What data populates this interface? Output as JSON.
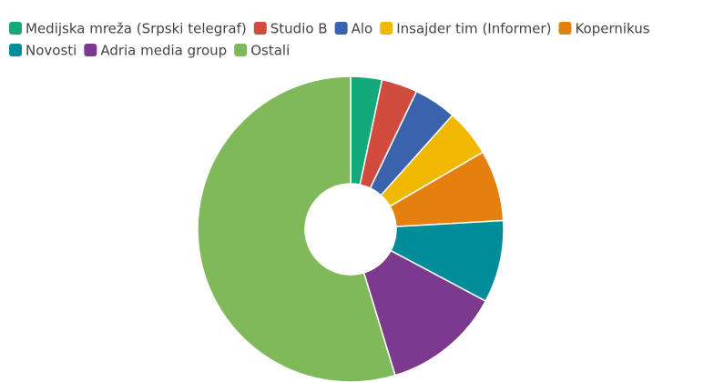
{
  "chart_data": {
    "type": "pie",
    "donut": true,
    "categories": [
      "Medijska mreža (Srpski telegraf)",
      "Studio B",
      "Alo",
      "Insajder tim (Informer)",
      "Kopernikus",
      "Novosti",
      "Adria media group",
      "Ostali"
    ],
    "values": [
      3.3,
      3.8,
      4.5,
      5,
      7.5,
      8.7,
      12.5,
      54.7
    ],
    "colors": [
      "#13a97b",
      "#d04c3e",
      "#3b63ad",
      "#f0b800",
      "#e5800f",
      "#008c99",
      "#7c3a8f",
      "#80b95a"
    ]
  }
}
